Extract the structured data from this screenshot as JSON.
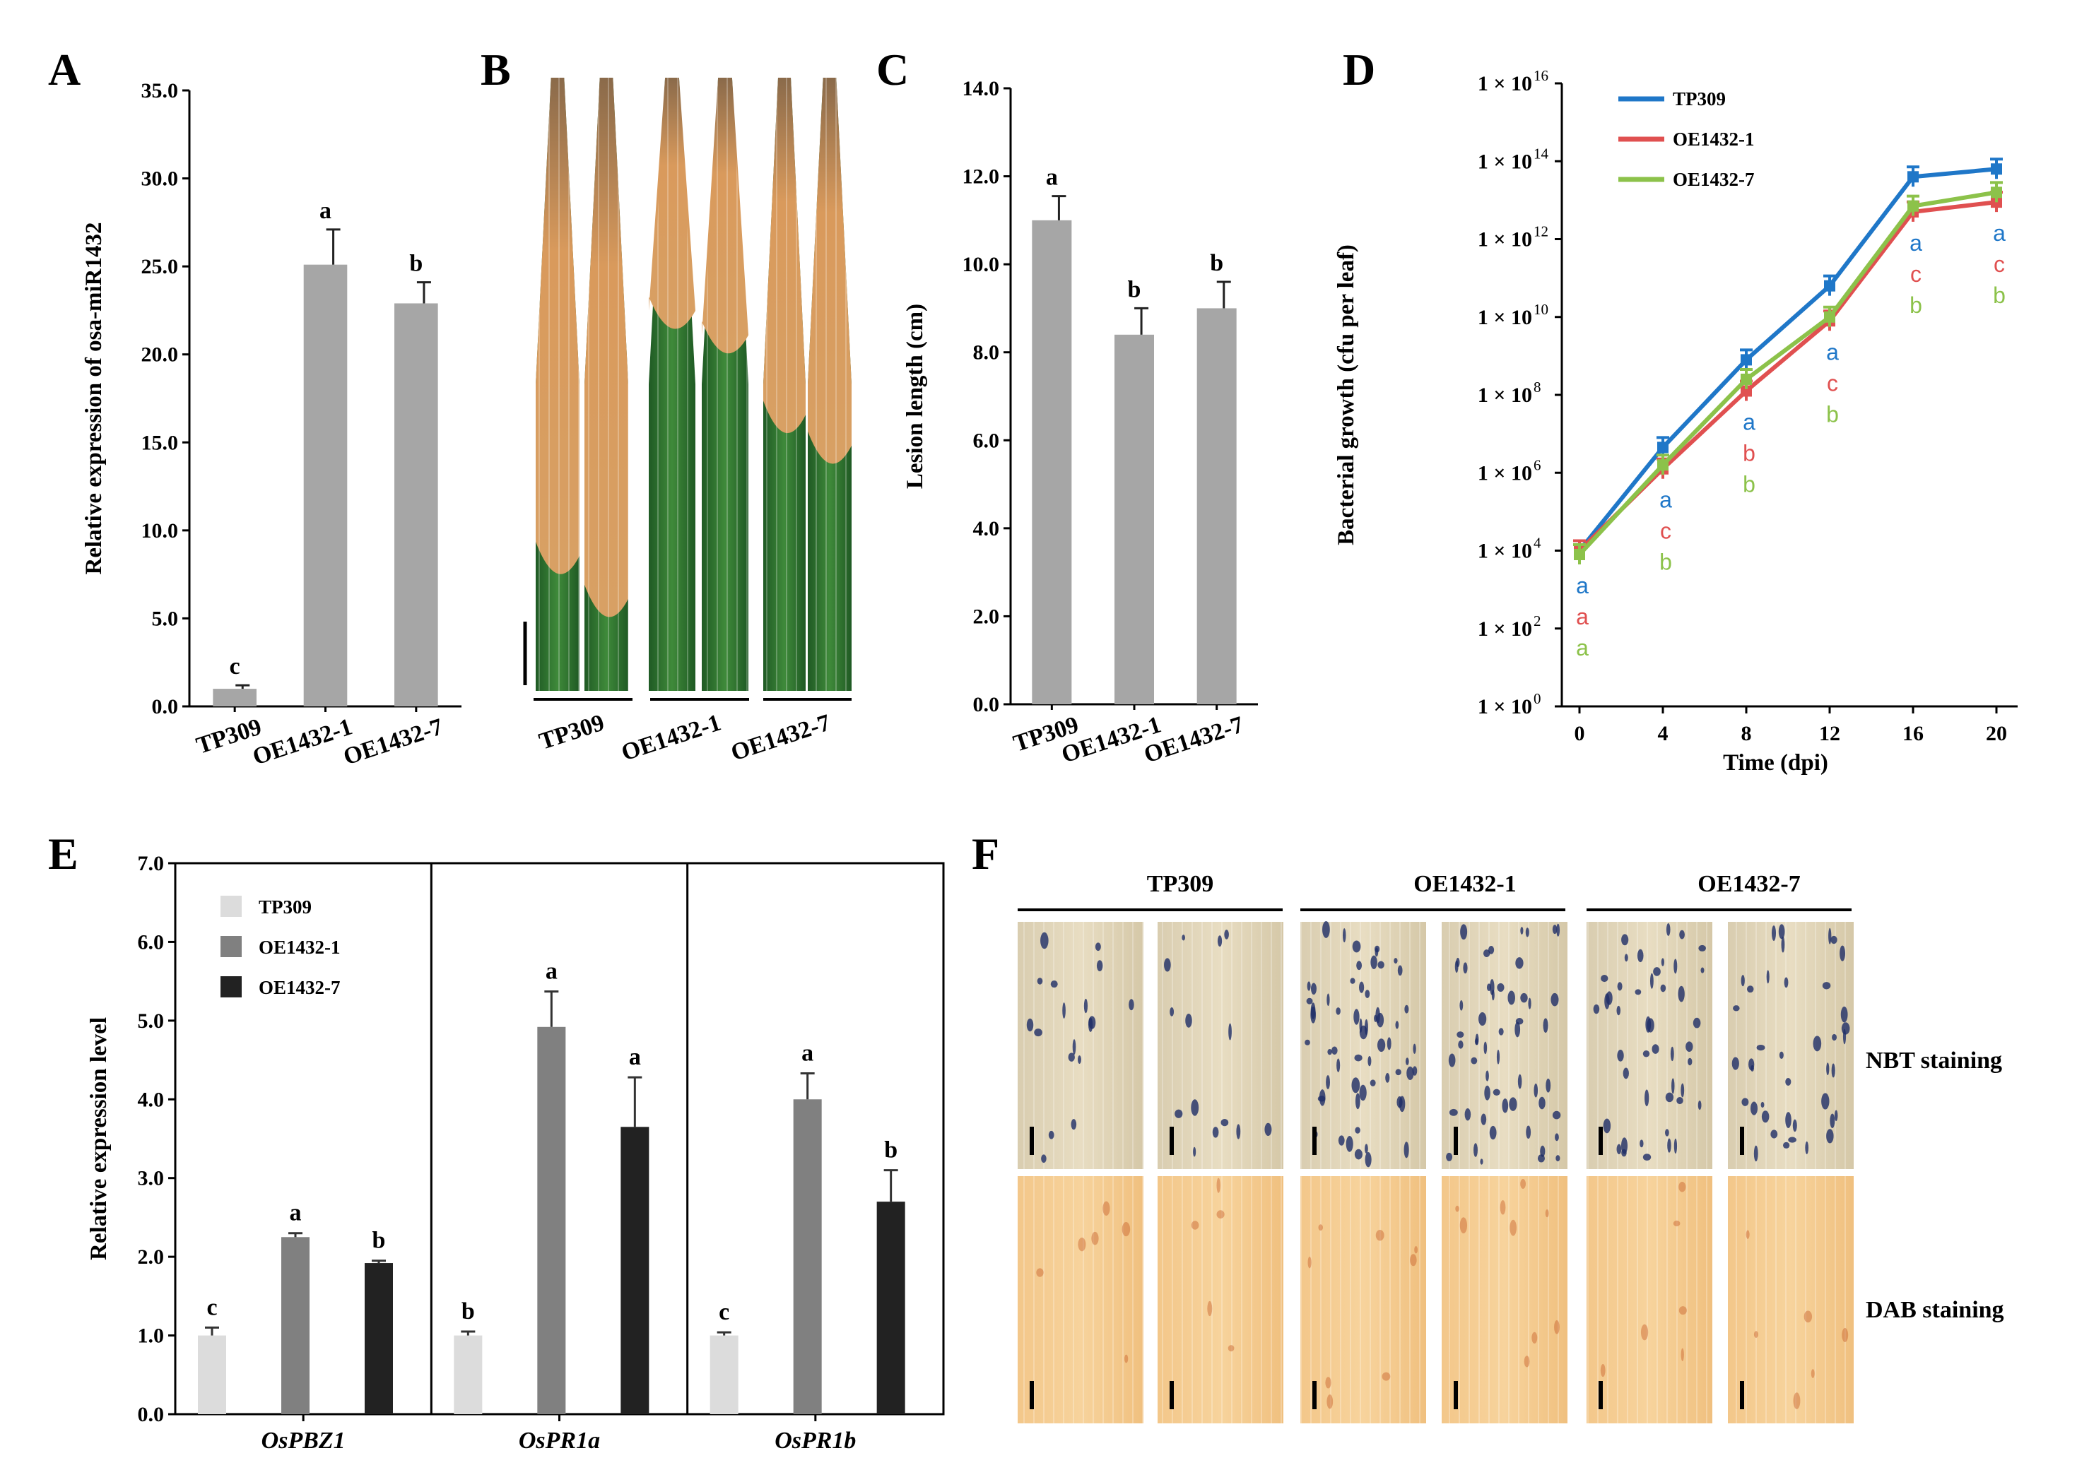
{
  "panels": {
    "A": {
      "letter": "A"
    },
    "B": {
      "letter": "B",
      "image_label": "leaf-lesion-photo",
      "groups": [
        "TP309",
        "OE1432-1",
        "OE1432-7"
      ]
    },
    "C": {
      "letter": "C"
    },
    "D": {
      "letter": "D"
    },
    "E": {
      "letter": "E"
    },
    "F": {
      "letter": "F",
      "groups": [
        "TP309",
        "OE1432-1",
        "OE1432-7"
      ],
      "rows": [
        "NBT staining",
        "DAB staining"
      ]
    }
  },
  "chart_data": [
    {
      "id": "A",
      "type": "bar",
      "categories": [
        "TP309",
        "OE1432-1",
        "OE1432-7"
      ],
      "values": [
        1.0,
        25.1,
        22.9
      ],
      "errors": [
        0.2,
        2.0,
        1.2
      ],
      "letters": [
        "c",
        "a",
        "b"
      ],
      "ylabel": "Relative expression of osa-miR1432",
      "ylim": [
        0,
        35
      ],
      "yticks": [
        "0.0",
        "5.0",
        "10.0",
        "15.0",
        "20.0",
        "25.0",
        "30.0",
        "35.0"
      ],
      "bar_color": "#a6a6a6"
    },
    {
      "id": "C",
      "type": "bar",
      "categories": [
        "TP309",
        "OE1432-1",
        "OE1432-7"
      ],
      "values": [
        11.0,
        8.4,
        9.0
      ],
      "errors": [
        0.55,
        0.6,
        0.6
      ],
      "letters": [
        "a",
        "b",
        "b"
      ],
      "ylabel": "Lesion length (cm)",
      "ylim": [
        0,
        14
      ],
      "yticks": [
        "0.0",
        "2.0",
        "4.0",
        "6.0",
        "8.0",
        "10.0",
        "12.0",
        "14.0"
      ],
      "bar_color": "#a6a6a6"
    },
    {
      "id": "D",
      "type": "line",
      "x": [
        0,
        4,
        8,
        12,
        16,
        20
      ],
      "xticks": [
        "0",
        "4",
        "8",
        "12",
        "16",
        "20"
      ],
      "xlabel": "Time  (dpi)",
      "ylabel": "Bacterial growth (cfu per leaf)",
      "yscale": "log10",
      "ylim_exp": [
        0,
        16
      ],
      "ytick_base": "1 × 10",
      "ytick_exps": [
        "0",
        "2",
        "4",
        "6",
        "8",
        "10",
        "12",
        "14",
        "16"
      ],
      "series": [
        {
          "name": "TP309",
          "color": "#1f77c8",
          "log10_values": [
            4.0,
            6.65,
            8.9,
            10.8,
            13.6,
            13.8
          ],
          "letters": [
            "a",
            "a",
            "a",
            "a",
            "a",
            "a"
          ]
        },
        {
          "name": "OE1432-1",
          "color": "#e05050",
          "log10_values": [
            4.0,
            6.1,
            8.1,
            9.9,
            12.7,
            12.95
          ],
          "letters": [
            "a",
            "c",
            "b",
            "c",
            "c",
            "c"
          ]
        },
        {
          "name": "OE1432-7",
          "color": "#8cc24a",
          "log10_values": [
            3.9,
            6.2,
            8.4,
            10.0,
            12.85,
            13.2
          ],
          "letters": [
            "a",
            "b",
            "b",
            "b",
            "b",
            "b"
          ]
        }
      ]
    },
    {
      "id": "E",
      "type": "bar",
      "groups": [
        "OsPBZ1",
        "OsPR1a",
        "OsPR1b"
      ],
      "series": [
        {
          "name": "TP309",
          "color": "#dcdcdc",
          "values": [
            1.0,
            1.0,
            1.0
          ],
          "errors": [
            0.1,
            0.05,
            0.04
          ],
          "letters": [
            "c",
            "b",
            "c"
          ]
        },
        {
          "name": "OE1432-1",
          "color": "#808080",
          "values": [
            2.25,
            4.92,
            4.0
          ],
          "errors": [
            0.05,
            0.45,
            0.33
          ],
          "letters": [
            "a",
            "a",
            "a"
          ]
        },
        {
          "name": "OE1432-7",
          "color": "#222222",
          "values": [
            1.92,
            3.65,
            2.7
          ],
          "errors": [
            0.03,
            0.63,
            0.4
          ],
          "letters": [
            "b",
            "a",
            "b"
          ]
        }
      ],
      "ylabel": "Relative expression level",
      "ylim": [
        0,
        7
      ],
      "yticks": [
        "0.0",
        "1.0",
        "2.0",
        "3.0",
        "4.0",
        "5.0",
        "6.0",
        "7.0"
      ]
    }
  ]
}
